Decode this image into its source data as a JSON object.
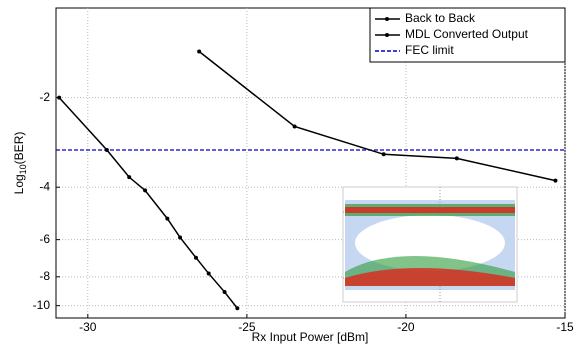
{
  "chart_data": {
    "type": "line",
    "xlabel": "Rx Input Power [dBm]",
    "ylabel": {
      "base": "Log",
      "subscript": "10",
      "rest": "(BER)"
    },
    "xlim": [
      -31,
      -15
    ],
    "xticks": [
      -30,
      -25,
      -20,
      -15
    ],
    "ylim": [
      -11,
      -1
    ],
    "yticks": [
      -2,
      -4,
      -6,
      -8,
      -10
    ],
    "yscale": "log-magnitude",
    "grid": true,
    "legend": "top-right",
    "series": [
      {
        "name": "Back to Back",
        "color": "#000000",
        "x": [
          -30.9,
          -29.4,
          -28.7,
          -28.2,
          -27.5,
          -27.1,
          -26.6,
          -26.2,
          -25.7,
          -25.3
        ],
        "values": [
          -2.0,
          -3.0,
          -3.7,
          -4.1,
          -5.1,
          -5.9,
          -6.9,
          -7.8,
          -9.0,
          -10.2
        ]
      },
      {
        "name": "MDL Converted Output",
        "color": "#000000",
        "x": [
          -26.5,
          -23.5,
          -20.7,
          -18.4,
          -15.3
        ],
        "values": [
          -1.4,
          -2.5,
          -3.1,
          -3.2,
          -3.8
        ]
      }
    ],
    "reference": {
      "name": "FEC limit",
      "color": "#0000cc",
      "value": -3
    }
  }
}
